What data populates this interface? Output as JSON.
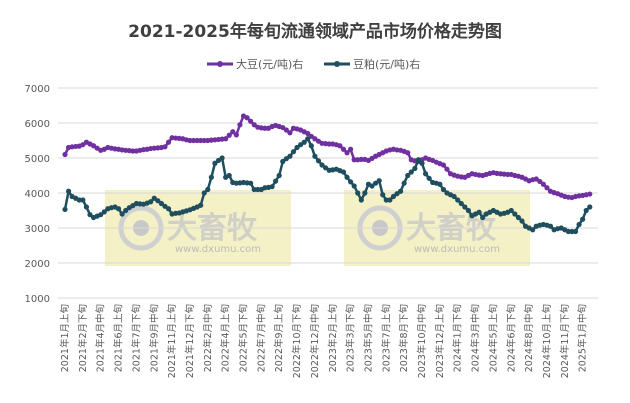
{
  "chart_data": {
    "type": "line",
    "title": "2021-2025年每旬流通领域产品市场价格走势图",
    "xlabel": "",
    "ylabel": "",
    "ylim": [
      1000,
      7000
    ],
    "yticks": [
      "1000",
      "2000",
      "3000",
      "4000",
      "5000",
      "6000",
      "7000"
    ],
    "grid": true,
    "legend_position": "top",
    "x_tick_labels": [
      "2021年1月上旬",
      "2021年2月下旬",
      "2021年4月中旬",
      "2021年6月上旬",
      "2021年7月下旬",
      "2021年9月中旬",
      "2021年11月上旬",
      "2021年12月下旬",
      "2022年2月中旬",
      "2022年4月上旬",
      "2022年5月下旬",
      "2022年7月中旬",
      "2022年9月上旬",
      "2022年10月下旬",
      "2022年12月中旬",
      "2023年2月上旬",
      "2023年3月下旬",
      "2023年5月中旬",
      "2023年7月上旬",
      "2023年8月下旬",
      "2023年10月中旬",
      "2023年12月上旬",
      "2024年1月下旬",
      "2024年3月中旬",
      "2024年5月上旬",
      "2024年6月下旬",
      "2024年8月中旬",
      "2024年10月上旬",
      "2024年11月下旬",
      "2025年1月中旬"
    ],
    "x_tick_every": 5,
    "series": [
      {
        "name": "大豆(元/吨)右",
        "color": "#7030a0",
        "values": [
          5100,
          5300,
          5320,
          5330,
          5340,
          5380,
          5450,
          5400,
          5350,
          5280,
          5220,
          5250,
          5300,
          5280,
          5260,
          5250,
          5230,
          5220,
          5210,
          5200,
          5200,
          5220,
          5240,
          5250,
          5270,
          5280,
          5290,
          5300,
          5320,
          5450,
          5580,
          5570,
          5560,
          5550,
          5520,
          5500,
          5500,
          5500,
          5500,
          5500,
          5500,
          5510,
          5520,
          5530,
          5540,
          5550,
          5650,
          5750,
          5660,
          5950,
          6200,
          6150,
          6050,
          5950,
          5880,
          5860,
          5850,
          5850,
          5900,
          5930,
          5900,
          5870,
          5800,
          5720,
          5850,
          5830,
          5800,
          5750,
          5700,
          5620,
          5550,
          5480,
          5420,
          5410,
          5400,
          5400,
          5380,
          5350,
          5250,
          5150,
          5250,
          4950,
          4950,
          4960,
          4960,
          4930,
          4990,
          5050,
          5100,
          5150,
          5200,
          5230,
          5250,
          5230,
          5220,
          5190,
          5150,
          4950,
          4920,
          4900,
          4950,
          5000,
          4960,
          4930,
          4880,
          4840,
          4800,
          4680,
          4550,
          4510,
          4480,
          4460,
          4450,
          4500,
          4550,
          4530,
          4510,
          4500,
          4530,
          4560,
          4580,
          4560,
          4550,
          4540,
          4530,
          4530,
          4500,
          4480,
          4450,
          4400,
          4350,
          4380,
          4400,
          4330,
          4250,
          4150,
          4050,
          4010,
          3980,
          3940,
          3900,
          3880,
          3870,
          3900,
          3920,
          3930,
          3950,
          3970
        ]
      },
      {
        "name": "豆粕(元/吨)右",
        "color": "#1f4e5f",
        "values": [
          3530,
          4050,
          3900,
          3850,
          3800,
          3800,
          3600,
          3380,
          3300,
          3340,
          3380,
          3460,
          3550,
          3580,
          3600,
          3550,
          3400,
          3500,
          3580,
          3640,
          3700,
          3690,
          3680,
          3710,
          3750,
          3850,
          3780,
          3700,
          3620,
          3550,
          3400,
          3420,
          3430,
          3460,
          3490,
          3520,
          3560,
          3600,
          3650,
          4000,
          4100,
          4450,
          4850,
          4930,
          5000,
          4450,
          4500,
          4300,
          4280,
          4290,
          4300,
          4290,
          4280,
          4100,
          4100,
          4100,
          4150,
          4160,
          4180,
          4340,
          4500,
          4900,
          4980,
          5050,
          5180,
          5300,
          5380,
          5450,
          5550,
          5350,
          5050,
          4920,
          4800,
          4720,
          4650,
          4660,
          4680,
          4640,
          4600,
          4450,
          4320,
          4200,
          4000,
          3800,
          4000,
          4250,
          4200,
          4280,
          4350,
          3950,
          3800,
          3800,
          3900,
          3980,
          4050,
          4280,
          4500,
          4600,
          4700,
          4950,
          4850,
          4550,
          4420,
          4300,
          4280,
          4250,
          4100,
          4000,
          3950,
          3900,
          3800,
          3700,
          3600,
          3500,
          3350,
          3400,
          3450,
          3300,
          3400,
          3450,
          3500,
          3450,
          3400,
          3420,
          3450,
          3500,
          3400,
          3300,
          3200,
          3050,
          3000,
          2950,
          3050,
          3080,
          3100,
          3080,
          3050,
          2950,
          2980,
          3000,
          2950,
          2900,
          2900,
          2900,
          3100,
          3250,
          3500,
          3600
        ]
      }
    ]
  },
  "watermark": {
    "logo_text": "大畜牧",
    "url": "www.dxumu.com",
    "box_color": "#f3eebc"
  }
}
